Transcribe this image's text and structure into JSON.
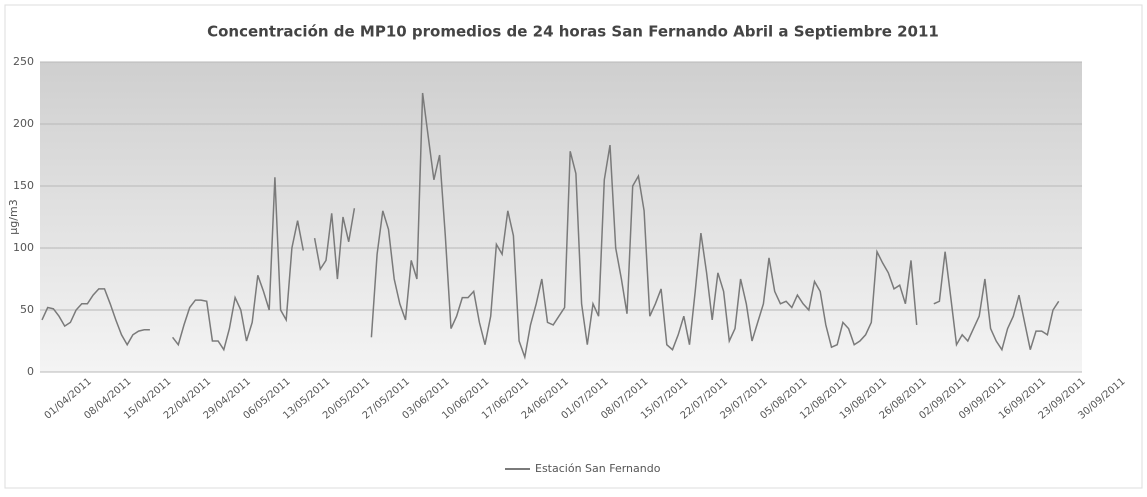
{
  "chart_data": {
    "type": "line",
    "title": "Concentración de MP10 promedios de 24 horas San Fernando Abril a Septiembre 2011",
    "y_label": "µg/m3",
    "categories": [
      "01/04/2011",
      null,
      null,
      null,
      null,
      null,
      null,
      "08/04/2011",
      null,
      null,
      null,
      null,
      null,
      null,
      "15/04/2011",
      null,
      null,
      null,
      null,
      null,
      null,
      "22/04/2011",
      null,
      null,
      null,
      null,
      null,
      null,
      "29/04/2011",
      null,
      null,
      null,
      null,
      null,
      null,
      "06/05/2011",
      null,
      null,
      null,
      null,
      null,
      null,
      "13/05/2011",
      null,
      null,
      null,
      null,
      null,
      null,
      "20/05/2011",
      null,
      null,
      null,
      null,
      null,
      null,
      "27/05/2011",
      null,
      null,
      null,
      null,
      null,
      null,
      "03/06/2011",
      null,
      null,
      null,
      null,
      null,
      null,
      "10/06/2011",
      null,
      null,
      null,
      null,
      null,
      null,
      "17/06/2011",
      null,
      null,
      null,
      null,
      null,
      null,
      "24/06/2011",
      null,
      null,
      null,
      null,
      null,
      null,
      "01/07/2011",
      null,
      null,
      null,
      null,
      null,
      null,
      "08/07/2011",
      null,
      null,
      null,
      null,
      null,
      null,
      "15/07/2011",
      null,
      null,
      null,
      null,
      null,
      null,
      "22/07/2011",
      null,
      null,
      null,
      null,
      null,
      null,
      "29/07/2011",
      null,
      null,
      null,
      null,
      null,
      null,
      "05/08/2011",
      null,
      null,
      null,
      null,
      null,
      null,
      "12/08/2011",
      null,
      null,
      null,
      null,
      null,
      null,
      "19/08/2011",
      null,
      null,
      null,
      null,
      null,
      null,
      "26/08/2011",
      null,
      null,
      null,
      null,
      null,
      null,
      "02/09/2011",
      null,
      null,
      null,
      null,
      null,
      null,
      "09/09/2011",
      null,
      null,
      null,
      null,
      null,
      null,
      "16/09/2011",
      null,
      null,
      null,
      null,
      null,
      null,
      "23/09/2011",
      null,
      null,
      null,
      null,
      null,
      null,
      "30/09/2011"
    ],
    "series": [
      {
        "name": "Estación San Fernando",
        "color": "#7a7a7a",
        "values": [
          42,
          52,
          51,
          45,
          37,
          40,
          50,
          55,
          55,
          62,
          67,
          67,
          55,
          42,
          30,
          22,
          30,
          33,
          34,
          34,
          null,
          null,
          null,
          28,
          22,
          38,
          52,
          58,
          58,
          57,
          25,
          25,
          18,
          35,
          60,
          50,
          25,
          40,
          78,
          65,
          50,
          157,
          50,
          42,
          100,
          122,
          98,
          null,
          108,
          83,
          90,
          128,
          75,
          125,
          105,
          132,
          null,
          null,
          28,
          95,
          130,
          115,
          75,
          55,
          42,
          90,
          75,
          225,
          190,
          155,
          175,
          110,
          35,
          45,
          60,
          60,
          65,
          40,
          22,
          45,
          103,
          95,
          130,
          110,
          25,
          12,
          38,
          55,
          75,
          40,
          38,
          45,
          52,
          178,
          160,
          55,
          22,
          55,
          45,
          155,
          183,
          100,
          75,
          47,
          150,
          158,
          130,
          45,
          55,
          67,
          22,
          18,
          30,
          45,
          22,
          65,
          112,
          80,
          42,
          80,
          65,
          25,
          35,
          75,
          55,
          25,
          40,
          55,
          92,
          65,
          55,
          57,
          52,
          62,
          55,
          50,
          73,
          65,
          38,
          20,
          22,
          40,
          35,
          22,
          25,
          30,
          40,
          97,
          88,
          80,
          67,
          70,
          55,
          90,
          38,
          null,
          null,
          55,
          57,
          97,
          60,
          22,
          30,
          25,
          35,
          45,
          75,
          35,
          25,
          18,
          35,
          45,
          62,
          40,
          18,
          33,
          33,
          30,
          50,
          57,
          null,
          null,
          null
        ]
      }
    ],
    "ylim": [
      0,
      250
    ],
    "yticks": [
      0,
      50,
      100,
      150,
      200,
      250
    ],
    "grid": true,
    "legend": "bottom"
  }
}
